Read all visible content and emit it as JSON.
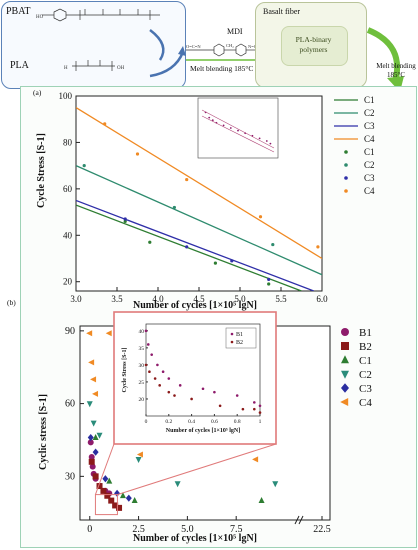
{
  "scheme": {
    "pbat_label": "PBAT",
    "pla_label": "PLA",
    "mdi_label": "MDI",
    "melt_label": "Melt blending 185°C",
    "basalt_label": "Basalt fiber",
    "polymer_label_line1": "PLA-binary",
    "polymer_label_line2": "polymers",
    "side_label_line1": "Melt blending",
    "side_label_line2": "185°C",
    "pbat_formula": "HO[C(=O)-C6H4-C(=O)O-(CH2)4-O]-[C(=O)(CH2)4C(=O)O(CH2)4O]n-H",
    "pla_formula": "H-[O-CH(CH3)-C(=O)]n-OH",
    "mdi_formula": "O=C=N-C6H4-CH2-C6H4-N=C=O",
    "colors": {
      "top_box": "#5b82b8",
      "arrow": "#6fbf3c",
      "basalt_box": "#b9c49a"
    }
  },
  "panel_a": {
    "label": "(a)",
    "chart_data": {
      "type": "scatter",
      "xlabel": "Number of cycles [1×10⁵ lgN]",
      "ylabel": "Cycle Stress [S-1]",
      "xlim": [
        3.0,
        6.0
      ],
      "ylim": [
        16,
        100
      ],
      "xticks": [
        "3.0",
        "3.5",
        "4.0",
        "4.5",
        "5.0",
        "5.5",
        "6.0"
      ],
      "yticks": [
        "20",
        "40",
        "60",
        "80",
        "100"
      ],
      "legend_position": "top-right",
      "legend_lines": [
        "C1",
        "C2",
        "C3",
        "C4"
      ],
      "legend_points": [
        "C1",
        "C2",
        "C3",
        "C4"
      ],
      "series": [
        {
          "name": "C1",
          "color": "#2e7d32",
          "points": [
            [
              3.6,
              46
            ],
            [
              3.9,
              37
            ],
            [
              4.7,
              28
            ],
            [
              5.35,
              19
            ]
          ],
          "fit": [
            [
              3.0,
              53
            ],
            [
              5.75,
              16
            ]
          ]
        },
        {
          "name": "C2",
          "color": "#2e8b6e",
          "points": [
            [
              3.1,
              70
            ],
            [
              4.2,
              52
            ],
            [
              5.4,
              36
            ]
          ],
          "fit": [
            [
              3.0,
              70
            ],
            [
              6.0,
              23
            ]
          ]
        },
        {
          "name": "C3",
          "color": "#2f2fa8",
          "points": [
            [
              3.6,
              47
            ],
            [
              4.35,
              35
            ],
            [
              4.9,
              29
            ],
            [
              5.35,
              21
            ]
          ],
          "fit": [
            [
              3.0,
              55
            ],
            [
              5.9,
              16
            ]
          ]
        },
        {
          "name": "C4",
          "color": "#f08a24",
          "points": [
            [
              3.35,
              88
            ],
            [
              3.75,
              75
            ],
            [
              4.35,
              64
            ],
            [
              5.25,
              48
            ],
            [
              5.95,
              35
            ]
          ],
          "fit": [
            [
              3.0,
              95
            ],
            [
              6.0,
              30
            ]
          ]
        }
      ]
    }
  },
  "panel_b": {
    "label": "(b)",
    "chart_data": {
      "type": "scatter",
      "xlabel": "Number of cycles [1×10⁵ lgN]",
      "ylabel": "Cyclic stress [S-1]",
      "xlim": [
        -0.5,
        22.5
      ],
      "ylim": [
        12,
        92
      ],
      "xticks": [
        "0",
        "2.5",
        "5.0",
        "7.5",
        "22.5"
      ],
      "yticks": [
        "30",
        "60",
        "90"
      ],
      "legend_position": "right",
      "series": [
        {
          "name": "B1",
          "color": "#8e1b6b",
          "marker": "circle",
          "points": [
            [
              0.05,
              44
            ],
            [
              0.1,
              38
            ],
            [
              0.15,
              34
            ],
            [
              0.2,
              31
            ],
            [
              0.3,
              29
            ],
            [
              0.5,
              26
            ],
            [
              0.8,
              24
            ],
            [
              1.0,
              23
            ]
          ]
        },
        {
          "name": "B2",
          "color": "#8b1a1a",
          "marker": "square",
          "points": [
            [
              0.1,
              36
            ],
            [
              0.3,
              30
            ],
            [
              0.5,
              26
            ],
            [
              0.7,
              24
            ],
            [
              0.9,
              22
            ],
            [
              1.1,
              20
            ],
            [
              1.3,
              18
            ],
            [
              1.5,
              17
            ]
          ]
        },
        {
          "name": "C1",
          "color": "#2e7d32",
          "marker": "triangle-up",
          "points": [
            [
              0.3,
              46
            ],
            [
              1.0,
              28
            ],
            [
              1.7,
              22
            ],
            [
              2.3,
              20
            ],
            [
              8.8,
              20
            ]
          ]
        },
        {
          "name": "C2",
          "color": "#2a8c7a",
          "marker": "triangle-down",
          "points": [
            [
              0.0,
              60
            ],
            [
              0.2,
              52
            ],
            [
              0.5,
              47
            ],
            [
              2.5,
              37
            ],
            [
              4.5,
              27
            ],
            [
              9.5,
              27
            ]
          ]
        },
        {
          "name": "C3",
          "color": "#2a2ea0",
          "marker": "diamond",
          "points": [
            [
              0.05,
              46
            ],
            [
              0.3,
              40
            ],
            [
              0.8,
              29
            ],
            [
              1.4,
              23
            ],
            [
              2.0,
              21
            ]
          ]
        },
        {
          "name": "C4",
          "color": "#f08a24",
          "marker": "triangle-left",
          "points": [
            [
              0.0,
              89
            ],
            [
              0.1,
              77
            ],
            [
              0.2,
              70
            ],
            [
              0.3,
              64
            ],
            [
              1.0,
              89
            ],
            [
              2.0,
              47
            ],
            [
              2.6,
              39
            ],
            [
              8.5,
              37
            ]
          ]
        }
      ],
      "inset": {
        "xlabel": "Number of cycles [1×10⁵ lgN]",
        "ylabel": "Cycle Stress [S-1]",
        "xticks": [
          "0",
          "0.2",
          "0.4",
          "0.6",
          "0.8",
          "1"
        ],
        "yticks": [
          "20",
          "25",
          "30",
          "35",
          "40"
        ],
        "legend": [
          "B1",
          "B2"
        ],
        "series": [
          {
            "name": "B1",
            "color": "#8e1b6b",
            "points": [
              [
                0.0,
                40
              ],
              [
                0.02,
                36
              ],
              [
                0.05,
                33
              ],
              [
                0.1,
                30
              ],
              [
                0.15,
                28
              ],
              [
                0.2,
                26
              ],
              [
                0.3,
                24
              ],
              [
                0.5,
                23
              ],
              [
                0.6,
                22
              ],
              [
                0.8,
                21
              ],
              [
                0.95,
                19
              ],
              [
                1.0,
                18
              ]
            ]
          },
          {
            "name": "B2",
            "color": "#8b1a1a",
            "points": [
              [
                0.0,
                30
              ],
              [
                0.03,
                28
              ],
              [
                0.08,
                26
              ],
              [
                0.12,
                24
              ],
              [
                0.2,
                22
              ],
              [
                0.25,
                21
              ],
              [
                0.4,
                20
              ],
              [
                0.65,
                18
              ],
              [
                0.85,
                17
              ],
              [
                0.95,
                17
              ],
              [
                1.0,
                16
              ]
            ]
          }
        ]
      }
    }
  }
}
